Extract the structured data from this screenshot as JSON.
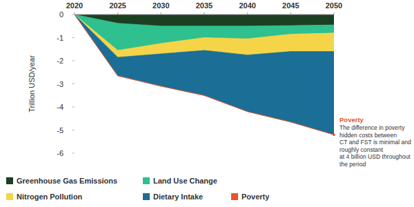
{
  "chart_data": {
    "type": "area",
    "stacked": true,
    "ylabel": "Trillion USD/year",
    "x": [
      2020,
      2025,
      2030,
      2035,
      2040,
      2045,
      2050
    ],
    "xlim": [
      2020,
      2050
    ],
    "xticks": [
      2020,
      2025,
      2030,
      2035,
      2040,
      2045,
      2050
    ],
    "ylim": [
      -6,
      0
    ],
    "yticks": [
      0,
      -1,
      -2,
      -3,
      -4,
      -5,
      -6
    ],
    "grid": false,
    "legend": "bottom",
    "series": [
      {
        "name": "Greenhouse Gas Emissions",
        "color": "#1c3f22",
        "values": [
          0,
          -0.38,
          -0.5,
          -0.5,
          -0.5,
          -0.48,
          -0.45
        ]
      },
      {
        "name": "Land Use Change",
        "color": "#2ec08f",
        "values": [
          0,
          -1.17,
          -0.75,
          -0.5,
          -0.55,
          -0.37,
          -0.35
        ]
      },
      {
        "name": "Nitrogen Pollution",
        "color": "#f5d447",
        "values": [
          0,
          -0.3,
          -0.45,
          -0.55,
          -0.7,
          -0.75,
          -0.8
        ]
      },
      {
        "name": "Dietary Intake",
        "color": "#1b6e95",
        "values": [
          0,
          -0.8,
          -1.4,
          -1.95,
          -2.45,
          -3.05,
          -3.6
        ]
      },
      {
        "name": "Poverty",
        "color": "#e8532b",
        "values": [
          0,
          -0.004,
          -0.004,
          -0.004,
          -0.004,
          -0.004,
          -0.004
        ]
      }
    ],
    "annotations": [
      {
        "title": "Poverty",
        "lines": [
          "The difference in poverty",
          "hidden costs between",
          "CT and FST is minimal and",
          "roughly constant",
          "at 4 billion USD throughout",
          "the period"
        ]
      }
    ]
  }
}
